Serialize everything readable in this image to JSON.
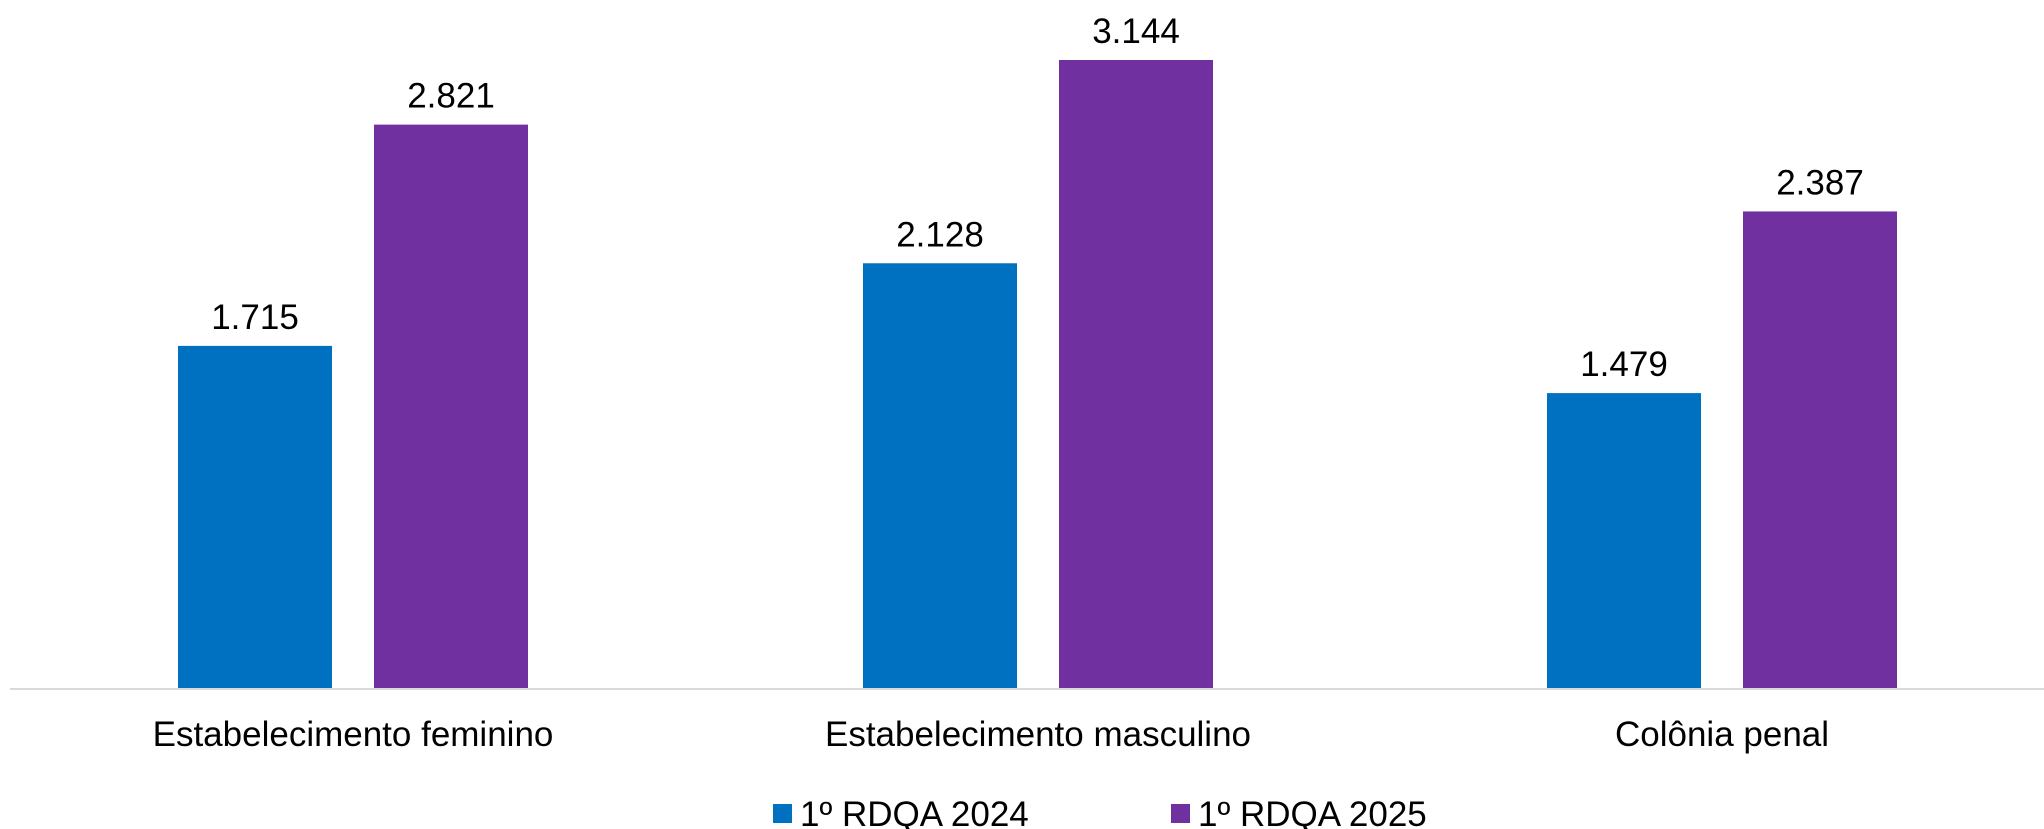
{
  "chart_data": {
    "type": "bar",
    "categories": [
      "Estabelecimento feminino",
      "Estabelecimento masculino",
      "Colônia penal"
    ],
    "series": [
      {
        "name": "1º RDQA 2024",
        "color": "#0070C0",
        "values": [
          1715,
          2128,
          1479
        ],
        "labels": [
          "1.715",
          "2.128",
          "1.479"
        ]
      },
      {
        "name": "1º RDQA 2025",
        "color": "#7030A0",
        "values": [
          2821,
          3144,
          2387
        ],
        "labels": [
          "2.821",
          "3.144",
          "2.387"
        ]
      }
    ],
    "ylim": [
      0,
      3400
    ],
    "grid": false,
    "legend_position": "bottom",
    "axis_color": "#D9D9D9"
  }
}
